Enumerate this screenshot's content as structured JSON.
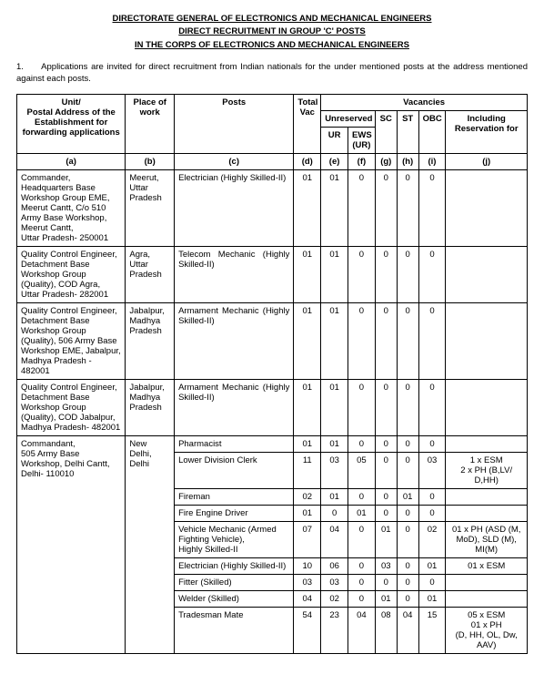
{
  "titles": {
    "t1": "DIRECTORATE GENERAL OF ELECTRONICS AND MECHANICAL ENGINEERS",
    "t2": "DIRECT RECRUITMENT IN GROUP 'C' POSTS",
    "t3": "IN THE CORPS OF ELECTRONICS AND MECHANICAL ENGINEERS"
  },
  "intro": {
    "num": "1.",
    "text": "Applications are invited for direct recruitment from Indian nationals for the under mentioned posts at the address mentioned against each posts."
  },
  "headers": {
    "unit": "Unit/\nPostal Address of the Establishment for forwarding applications",
    "place": "Place of work",
    "posts": "Posts",
    "total": "Total Vac",
    "vac": "Vacancies",
    "unres": "Unreserved",
    "sc": "SC",
    "st": "ST",
    "obc": "OBC",
    "incl": "Including Reservation for",
    "ur": "UR",
    "ews": "EWS (UR)"
  },
  "labels": {
    "a": "(a)",
    "b": "(b)",
    "c": "(c)",
    "d": "(d)",
    "e": "(e)",
    "f": "(f)",
    "g": "(g)",
    "h": "(h)",
    "i": "(i)",
    "j": "(j)"
  },
  "rows": [
    {
      "unit": "Commander, Headquarters Base Workshop Group EME, Meerut Cantt, C/o 510 Army Base Workshop, Meerut Cantt,\nUttar Pradesh- 250001",
      "place": "Meerut, Uttar Pradesh",
      "post": "Electrician (Highly Skilled-II)",
      "d": "01",
      "e": "01",
      "f": "0",
      "g": "0",
      "h": "0",
      "i": "0",
      "j": ""
    },
    {
      "unit": "Quality Control Engineer, Detachment Base Workshop Group  (Quality), COD Agra,\nUttar Pradesh- 282001",
      "place": "Agra, Uttar Pradesh",
      "post": "Telecom Mechanic (Highly Skilled-II)",
      "d": "01",
      "e": "01",
      "f": "0",
      "g": "0",
      "h": "0",
      "i": "0",
      "j": ""
    },
    {
      "unit": "Quality Control Engineer, Detachment Base Workshop Group  (Quality), 506 Army Base Workshop EME, Jabalpur,\nMadhya Pradesh - 482001",
      "place": "Jabalpur, Madhya Pradesh",
      "post": "Armament Mechanic (Highly Skilled-II)",
      "d": "01",
      "e": "01",
      "f": "0",
      "g": "0",
      "h": "0",
      "i": "0",
      "j": ""
    },
    {
      "unit": "Quality Control Engineer, Detachment Base Workshop Group  (Quality), COD Jabalpur,\nMadhya Pradesh- 482001",
      "place": "Jabalpur, Madhya Pradesh",
      "post": "Armament Mechanic (Highly Skilled-II)",
      "d": "01",
      "e": "01",
      "f": "0",
      "g": "0",
      "h": "0",
      "i": "0",
      "j": ""
    }
  ],
  "group5": {
    "unit": "Commandant,\n505 Army Base Workshop, Delhi Cantt,\nDelhi- 110010",
    "place": "New Delhi, Delhi",
    "posts": [
      {
        "post": "Pharmacist",
        "d": "01",
        "e": "01",
        "f": "0",
        "g": "0",
        "h": "0",
        "i": "0",
        "j": ""
      },
      {
        "post": "Lower Division Clerk",
        "d": "11",
        "e": "03",
        "f": "05",
        "g": "0",
        "h": "0",
        "i": "03",
        "j": "1 x ESM\n2 x PH (B,LV/ D,HH)"
      },
      {
        "post": "Fireman",
        "d": "02",
        "e": "01",
        "f": "0",
        "g": "0",
        "h": "01",
        "i": "0",
        "j": ""
      },
      {
        "post": "Fire Engine Driver",
        "d": "01",
        "e": "0",
        "f": "01",
        "g": "0",
        "h": "0",
        "i": "0",
        "j": ""
      },
      {
        "post": "Vehicle Mechanic (Armed Fighting Vehicle),\nHighly Skilled-II",
        "d": "07",
        "e": "04",
        "f": "0",
        "g": "01",
        "h": "0",
        "i": "02",
        "j": "01 x PH (ASD (M, MoD), SLD (M), MI(M)"
      },
      {
        "post": "Electrician (Highly Skilled-II)",
        "d": "10",
        "e": "06",
        "f": "0",
        "g": "03",
        "h": "0",
        "i": "01",
        "j": "01 x ESM"
      },
      {
        "post": "Fitter (Skilled)",
        "d": "03",
        "e": "03",
        "f": "0",
        "g": "0",
        "h": "0",
        "i": "0",
        "j": ""
      },
      {
        "post": "Welder (Skilled)",
        "d": "04",
        "e": "02",
        "f": "0",
        "g": "01",
        "h": "0",
        "i": "01",
        "j": ""
      },
      {
        "post": "Tradesman Mate",
        "d": "54",
        "e": "23",
        "f": "04",
        "g": "08",
        "h": "04",
        "i": "15",
        "j": "05 x ESM\n01 x PH\n(D, HH, OL, Dw, AAV)"
      }
    ]
  }
}
